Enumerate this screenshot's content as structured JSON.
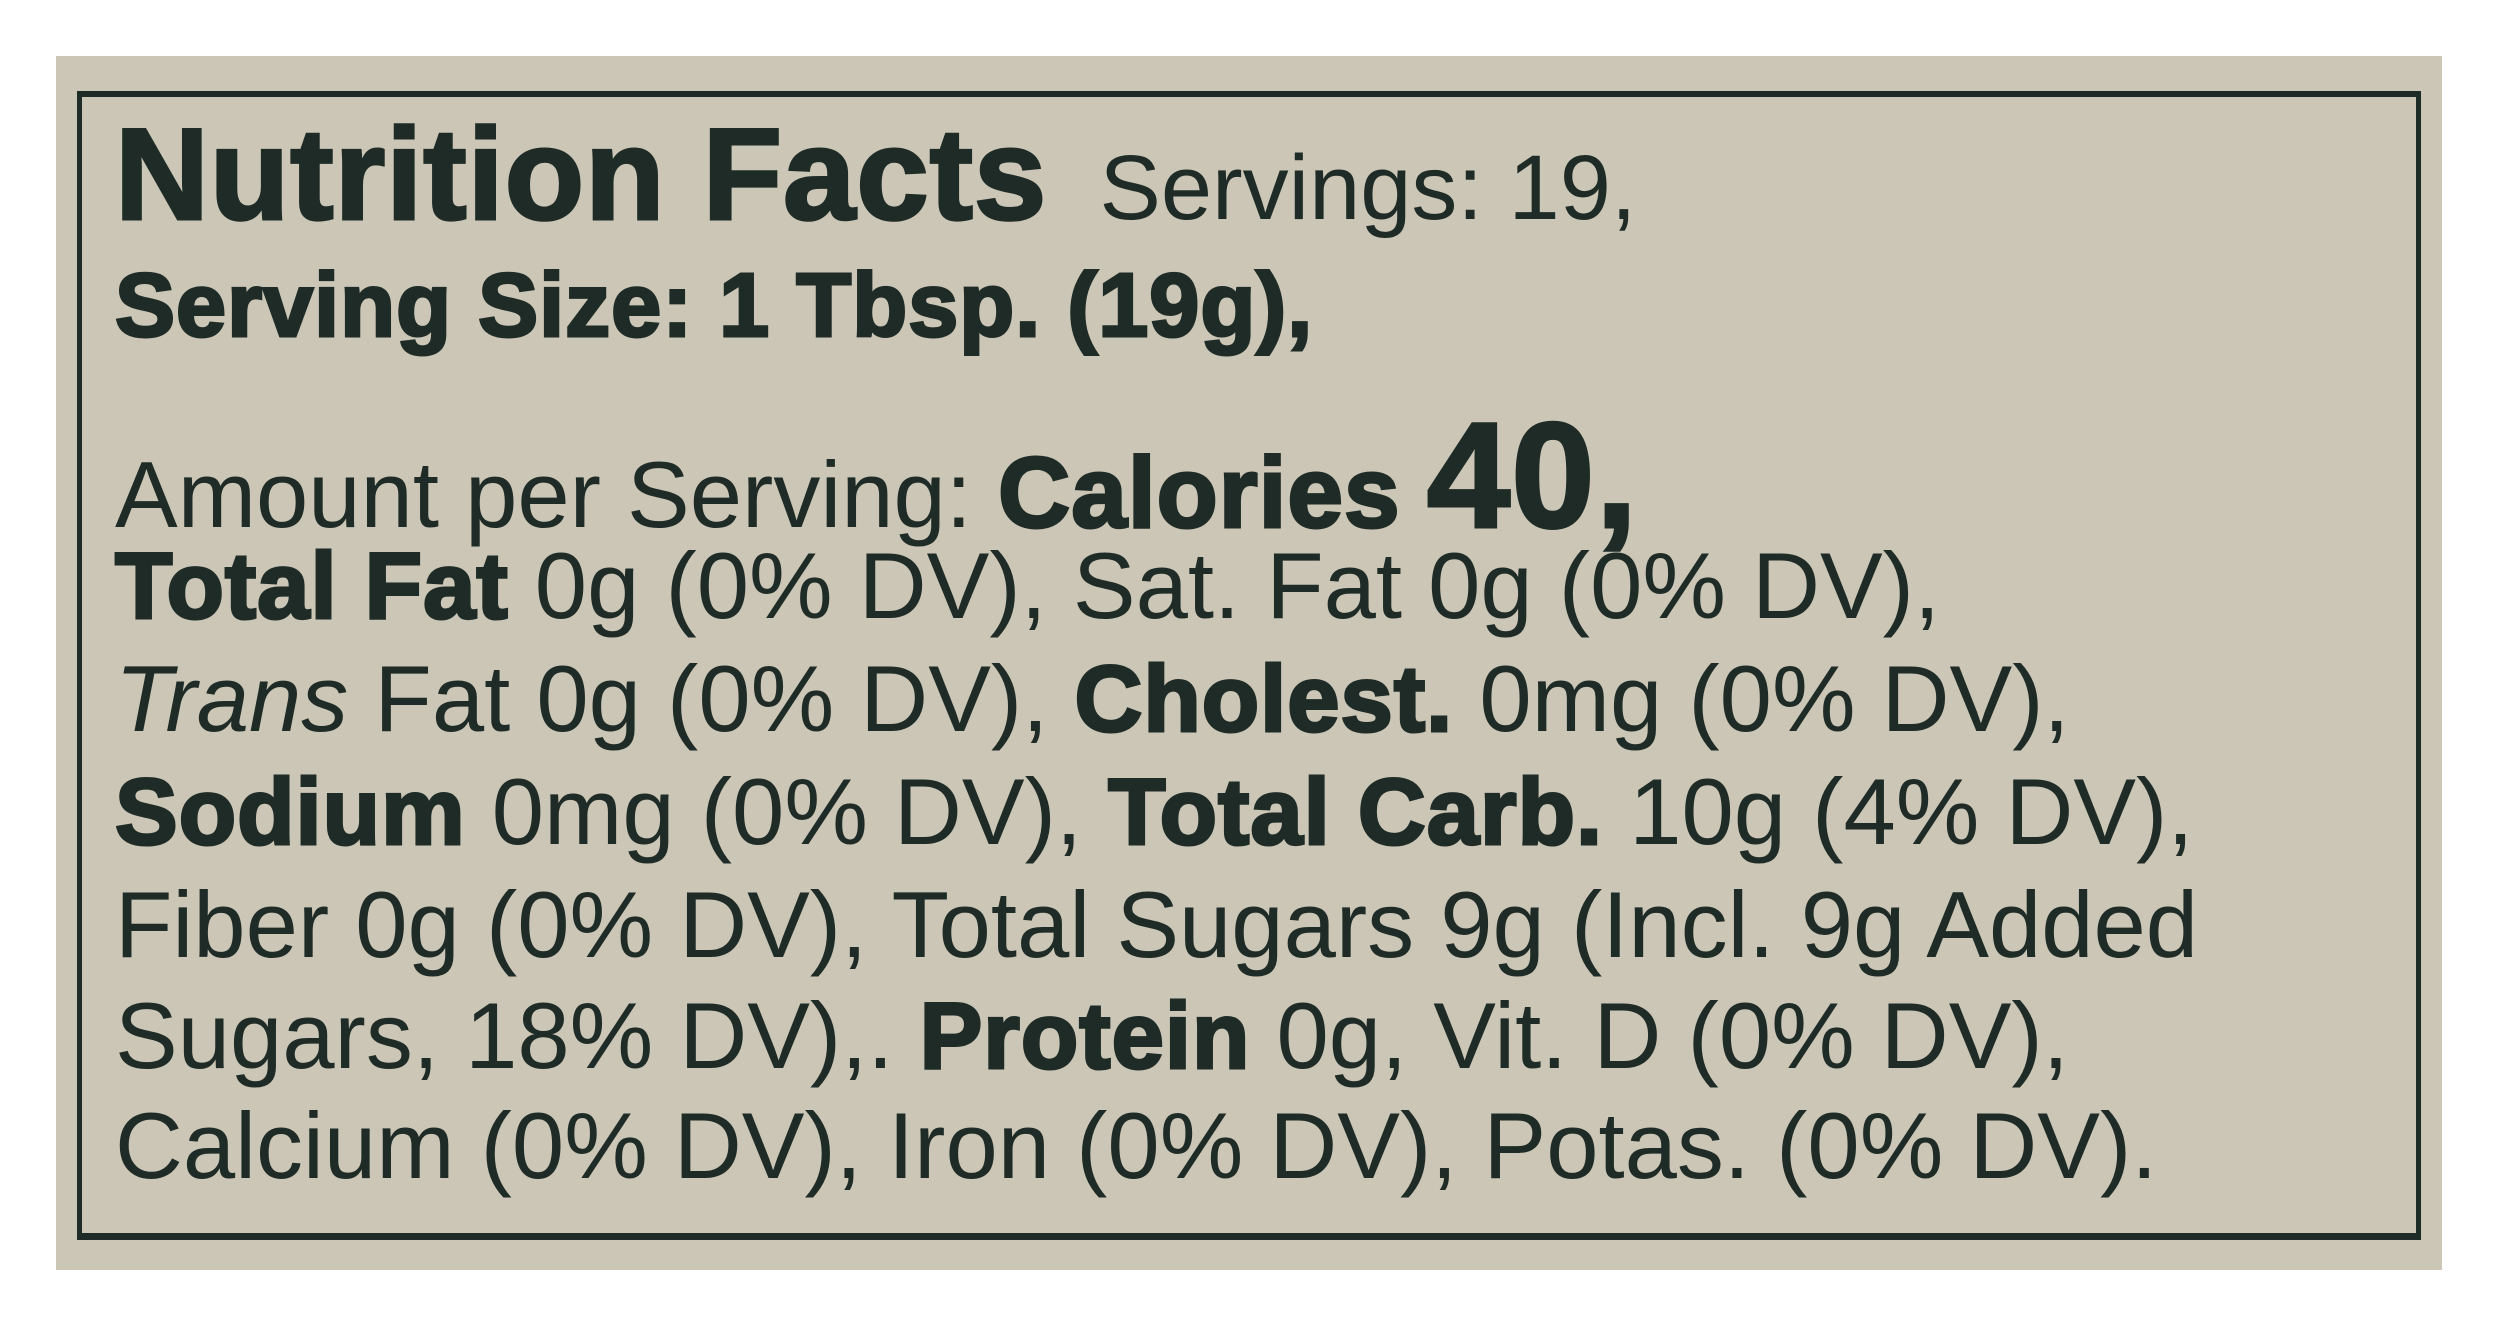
{
  "label": {
    "title": "Nutrition Facts",
    "servings": "Servings: 19,",
    "serving_size": "Serving Size: 1 Tbsp. (19g),",
    "amount_per_serving": "Amount per Serving:",
    "calories_label": "Calories",
    "calories_value": "40,",
    "nutrients": {
      "total_fat_label": "Total Fat",
      "total_fat_value": " 0g (0% DV), Sat. Fat 0g (0% DV),",
      "trans_label": "Trans",
      "trans_value": " Fat 0g (0% DV), ",
      "cholest_label": "Cholest.",
      "cholest_value": " 0mg (0% DV),",
      "sodium_label": "Sodium",
      "sodium_value": " 0mg (0% DV), ",
      "carb_label": "Total Carb.",
      "carb_value": " 10g (4% DV),",
      "fiber_sugars": "Fiber 0g (0% DV), Total Sugars 9g (Incl. 9g Added",
      "added_sugars": "Sugars, 18% DV),. ",
      "protein_label": "Protein",
      "protein_value": " 0g, Vit. D (0% DV),",
      "minerals": "Calcium (0% DV), Iron (0% DV), Potas. (0% DV)."
    }
  },
  "colors": {
    "ink": "#1f2b26",
    "background": "#cbc6b6"
  }
}
